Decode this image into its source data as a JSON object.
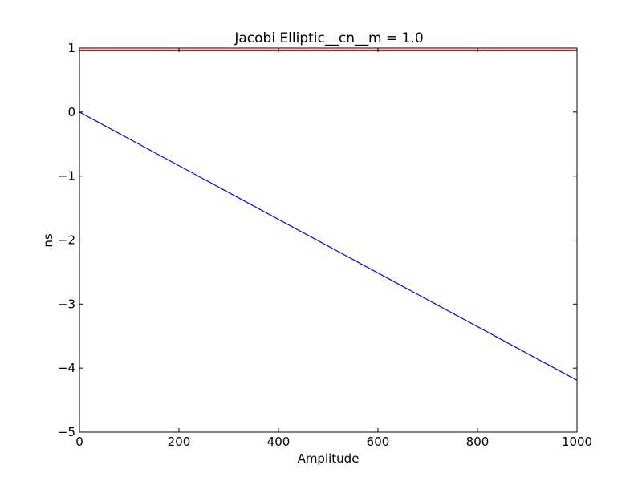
{
  "chart_data": {
    "type": "line",
    "title": "Jacobi Elliptic__cn__m = 1.0",
    "xlabel": "Amplitude",
    "ylabel": "ns",
    "xlim": [
      0,
      1000
    ],
    "ylim": [
      -5,
      1
    ],
    "xticks": [
      0,
      200,
      400,
      600,
      800,
      1000
    ],
    "xtick_labels": [
      "0",
      "200",
      "400",
      "600",
      "800",
      "1000"
    ],
    "yticks": [
      1,
      0,
      -1,
      -2,
      -3,
      -4,
      -5
    ],
    "ytick_labels": [
      "1",
      "0",
      "−1",
      "−2",
      "−3",
      "−4",
      "−5"
    ],
    "grid": false,
    "series": [
      {
        "color": "#ff0000",
        "x": [
          0,
          1000
        ],
        "y": [
          0.97,
          0.97
        ]
      },
      {
        "color": "#0000ff",
        "x": [
          0,
          1000
        ],
        "y": [
          0.0,
          -4.19
        ]
      }
    ]
  }
}
